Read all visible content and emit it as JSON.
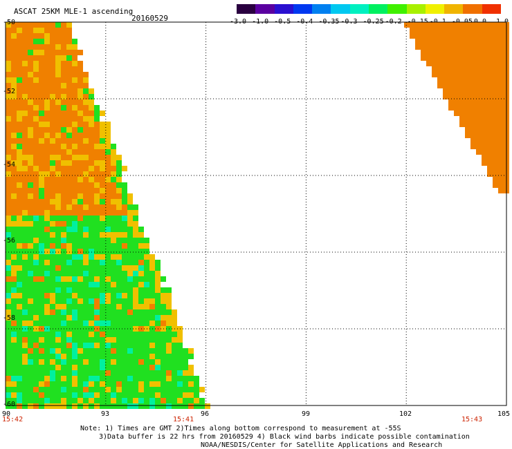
{
  "header": {
    "title": "ASCAT 25KM MLE-1 ascending",
    "date": "20160529"
  },
  "colorbar": {
    "colors": [
      "#2a0040",
      "#5a00a0",
      "#2a10d0",
      "#0038f0",
      "#0080f0",
      "#00c8f0",
      "#00f0c0",
      "#00f060",
      "#40f000",
      "#a8f000",
      "#f0f000",
      "#f0b400",
      "#f07000",
      "#f03000"
    ],
    "labels": [
      "-3.0",
      "-1.0",
      "-0.5",
      "-0.4",
      "-0.35",
      "-0.3",
      "-0.25",
      "-0.2",
      "-0.15",
      "-0.1",
      "-0.05",
      "0.0",
      "1.0"
    ]
  },
  "axes": {
    "y_labels": [
      "-50",
      "-52",
      "-54",
      "-56",
      "-58",
      "-60"
    ],
    "x_labels": [
      "90",
      "93",
      "96",
      "99",
      "102",
      "105"
    ],
    "lat_range": [
      -60,
      -50
    ],
    "lon_range": [
      90,
      105
    ]
  },
  "times": {
    "t1": "15:42",
    "t2": "15:41",
    "t3": "15:43"
  },
  "notes": {
    "line1": "Note: 1) Times are GMT 2)Times along bottom correspond to measurement at -55S",
    "line2": "3)Data buffer is 22 hrs from 20160529 4) Black wind barbs indicate possible contamination",
    "line3": "NOAA/NESDIS/Center for Satellite Applications and Research"
  },
  "swaths": {
    "left_swath_colors": [
      "#f08000",
      "#f0c000",
      "#20e020",
      "#00f0a0"
    ],
    "right_swath_colors": [
      "#f08000"
    ]
  }
}
